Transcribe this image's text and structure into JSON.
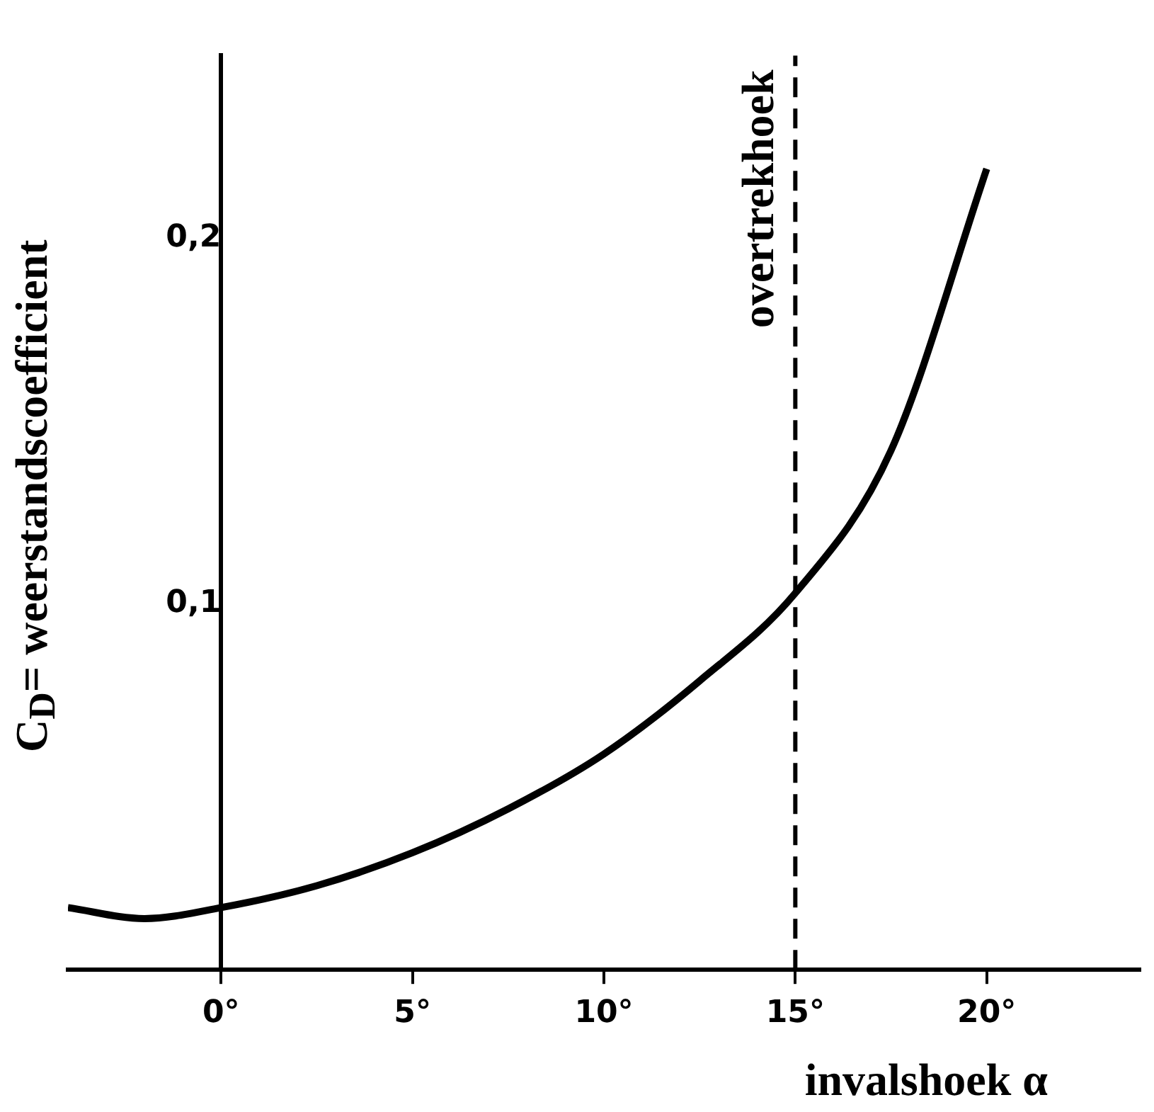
{
  "chart_data": {
    "type": "line",
    "xlabel": "invalshoek α",
    "ylabel": "C$_{D}$= weerstandscoefficient",
    "series": [
      {
        "color": "#000000",
        "x": [
          -4,
          -2,
          0,
          2.5,
          5,
          7.5,
          10,
          12.5,
          15,
          17.5,
          20
        ],
        "values": [
          0.017,
          0.014,
          0.017,
          0.023,
          0.032,
          0.044,
          0.059,
          0.079,
          0.103,
          0.142,
          0.219
        ]
      }
    ],
    "xlim": [
      -4,
      24
    ],
    "xticks": [
      {
        "value": 0,
        "label": "0°"
      },
      {
        "value": 5,
        "label": "5°"
      },
      {
        "value": 10,
        "label": "10°"
      },
      {
        "value": 15,
        "label": "15°"
      },
      {
        "value": 20,
        "label": "20°"
      }
    ],
    "ylim": [
      0,
      0.25
    ],
    "yticks": [
      {
        "value": 0.1,
        "label": "0,1"
      },
      {
        "value": 0.2,
        "label": "0,2"
      }
    ],
    "ref_lines": [
      {
        "axis": "x",
        "value": 15,
        "label": "overtrekhoek",
        "line_style": "dashed",
        "color": "#000000"
      }
    ],
    "grid": false,
    "legend": false,
    "marker": "none",
    "line_style": "solid"
  }
}
